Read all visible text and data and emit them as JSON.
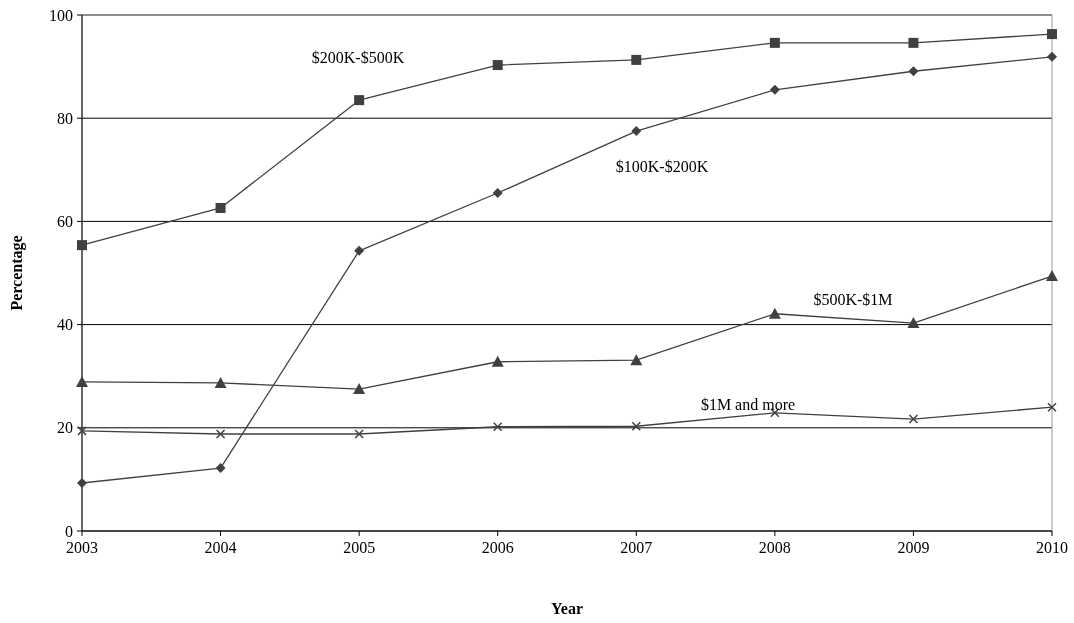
{
  "chart_data": {
    "type": "line",
    "xlabel": "Year",
    "ylabel": "Percentage",
    "categories": [
      "2003",
      "2004",
      "2005",
      "2006",
      "2007",
      "2008",
      "2009",
      "2010"
    ],
    "series": [
      {
        "name": "$200K-$500K",
        "color": "#404040",
        "marker": "square",
        "values": [
          55.4,
          62.6,
          83.5,
          90.3,
          91.3,
          94.6,
          94.6,
          96.3
        ]
      },
      {
        "name": "$100K-$200K",
        "color": "#404040",
        "marker": "diamond",
        "values": [
          9.3,
          12.2,
          54.3,
          65.5,
          77.5,
          85.5,
          89.1,
          91.9
        ]
      },
      {
        "name": "$500K-$1M",
        "color": "#404040",
        "marker": "triangle",
        "values": [
          28.9,
          28.7,
          27.5,
          32.8,
          33.1,
          42.1,
          40.3,
          49.4
        ]
      },
      {
        "name": "$1M and more",
        "color": "#404040",
        "marker": "cross",
        "values": [
          19.4,
          18.8,
          18.8,
          20.2,
          20.3,
          22.9,
          21.7,
          24.0
        ]
      }
    ],
    "ylim": [
      0,
      100
    ],
    "yticks": [
      0,
      20,
      40,
      60,
      80,
      100
    ],
    "grid": "y"
  }
}
